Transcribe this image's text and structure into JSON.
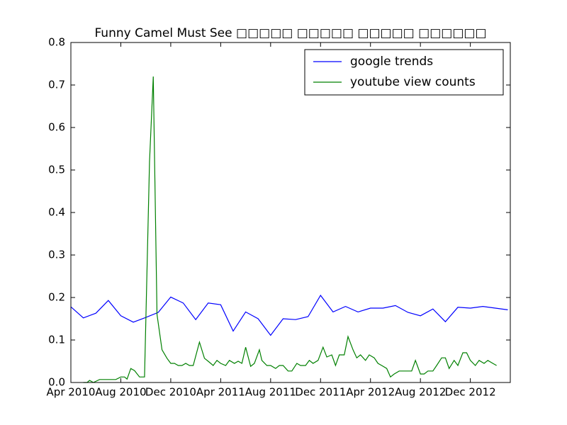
{
  "chart_data": {
    "type": "line",
    "title": "Funny Camel Must See □□□□□ □□□□□ □□□□□ □□□□□□",
    "xlim": [
      0,
      35.2
    ],
    "xticks": [
      {
        "value": 0,
        "label": "Apr 2010"
      },
      {
        "value": 4,
        "label": "Aug 2010"
      },
      {
        "value": 8,
        "label": "Dec 2010"
      },
      {
        "value": 12,
        "label": "Apr 2011"
      },
      {
        "value": 16,
        "label": "Aug 2011"
      },
      {
        "value": 20,
        "label": "Dec 2011"
      },
      {
        "value": 24,
        "label": "Apr 2012"
      },
      {
        "value": 28,
        "label": "Aug 2012"
      },
      {
        "value": 32,
        "label": "Dec 2012"
      }
    ],
    "ylim": [
      0,
      0.8
    ],
    "yticks": [
      {
        "value": 0,
        "label": "0.0"
      },
      0.1,
      0.2,
      0.3,
      0.4,
      0.5,
      0.6,
      0.7,
      0.8
    ],
    "legend": "upper right",
    "series": [
      {
        "name": "google trends",
        "color": "#0000ff",
        "x": [
          0,
          1,
          2,
          3,
          4,
          5,
          6,
          7,
          8,
          9,
          10,
          11,
          12,
          13,
          14,
          15,
          16,
          17,
          18,
          19,
          20,
          21,
          22,
          23,
          24,
          25,
          26,
          27,
          28,
          29,
          30,
          31,
          32,
          33,
          34,
          35
        ],
        "values": [
          0.178,
          0.152,
          0.163,
          0.193,
          0.157,
          0.142,
          0.153,
          0.165,
          0.201,
          0.187,
          0.148,
          0.187,
          0.183,
          0.121,
          0.166,
          0.15,
          0.111,
          0.15,
          0.148,
          0.155,
          0.205,
          0.166,
          0.179,
          0.166,
          0.175,
          0.175,
          0.181,
          0.165,
          0.157,
          0.173,
          0.143,
          0.177,
          0.175,
          0.179,
          0.175,
          0.171
        ]
      },
      {
        "name": "youtube view counts",
        "color": "#008000",
        "x": [
          1.0,
          1.3,
          1.5,
          1.8,
          2.3,
          3.3,
          3.6,
          4.0,
          4.3,
          4.5,
          4.8,
          5.1,
          5.5,
          5.9,
          6.3,
          6.6,
          6.9,
          7.3,
          7.7,
          8.0,
          8.3,
          8.6,
          8.9,
          9.2,
          9.5,
          9.8,
          10.3,
          10.7,
          11.0,
          11.4,
          11.7,
          12.0,
          12.4,
          12.7,
          13.1,
          13.4,
          13.7,
          14.0,
          14.4,
          14.7,
          15.1,
          15.3,
          15.7,
          16.0,
          16.4,
          16.7,
          17.0,
          17.4,
          17.7,
          18.1,
          18.4,
          18.8,
          19.1,
          19.4,
          19.8,
          20.2,
          20.5,
          20.9,
          21.2,
          21.5,
          21.9,
          22.2,
          22.6,
          22.9,
          23.2,
          23.6,
          23.9,
          24.3,
          24.6,
          24.9,
          25.3,
          25.6,
          25.9,
          26.3,
          26.6,
          26.9,
          27.3,
          27.6,
          28.0,
          28.3,
          28.6,
          29.0,
          29.3,
          29.7,
          30.0,
          30.3,
          30.7,
          31.0,
          31.4,
          31.7,
          32.0,
          32.4,
          32.7,
          33.1,
          33.4,
          33.8,
          34.1
        ],
        "values": [
          0.0,
          0.0,
          0.005,
          0.0,
          0.007,
          0.007,
          0.007,
          0.013,
          0.013,
          0.008,
          0.033,
          0.028,
          0.013,
          0.013,
          0.52,
          0.72,
          0.16,
          0.077,
          0.057,
          0.045,
          0.045,
          0.04,
          0.04,
          0.045,
          0.04,
          0.04,
          0.095,
          0.057,
          0.05,
          0.04,
          0.052,
          0.045,
          0.04,
          0.052,
          0.045,
          0.05,
          0.045,
          0.083,
          0.038,
          0.045,
          0.077,
          0.052,
          0.04,
          0.04,
          0.033,
          0.04,
          0.04,
          0.027,
          0.027,
          0.045,
          0.04,
          0.04,
          0.052,
          0.045,
          0.052,
          0.083,
          0.06,
          0.065,
          0.04,
          0.065,
          0.065,
          0.108,
          0.077,
          0.058,
          0.065,
          0.052,
          0.065,
          0.058,
          0.045,
          0.04,
          0.033,
          0.013,
          0.02,
          0.027,
          0.027,
          0.027,
          0.027,
          0.052,
          0.02,
          0.02,
          0.027,
          0.027,
          0.04,
          0.058,
          0.058,
          0.033,
          0.052,
          0.04,
          0.07,
          0.07,
          0.052,
          0.04,
          0.052,
          0.045,
          0.052,
          0.045,
          0.04
        ]
      }
    ]
  }
}
